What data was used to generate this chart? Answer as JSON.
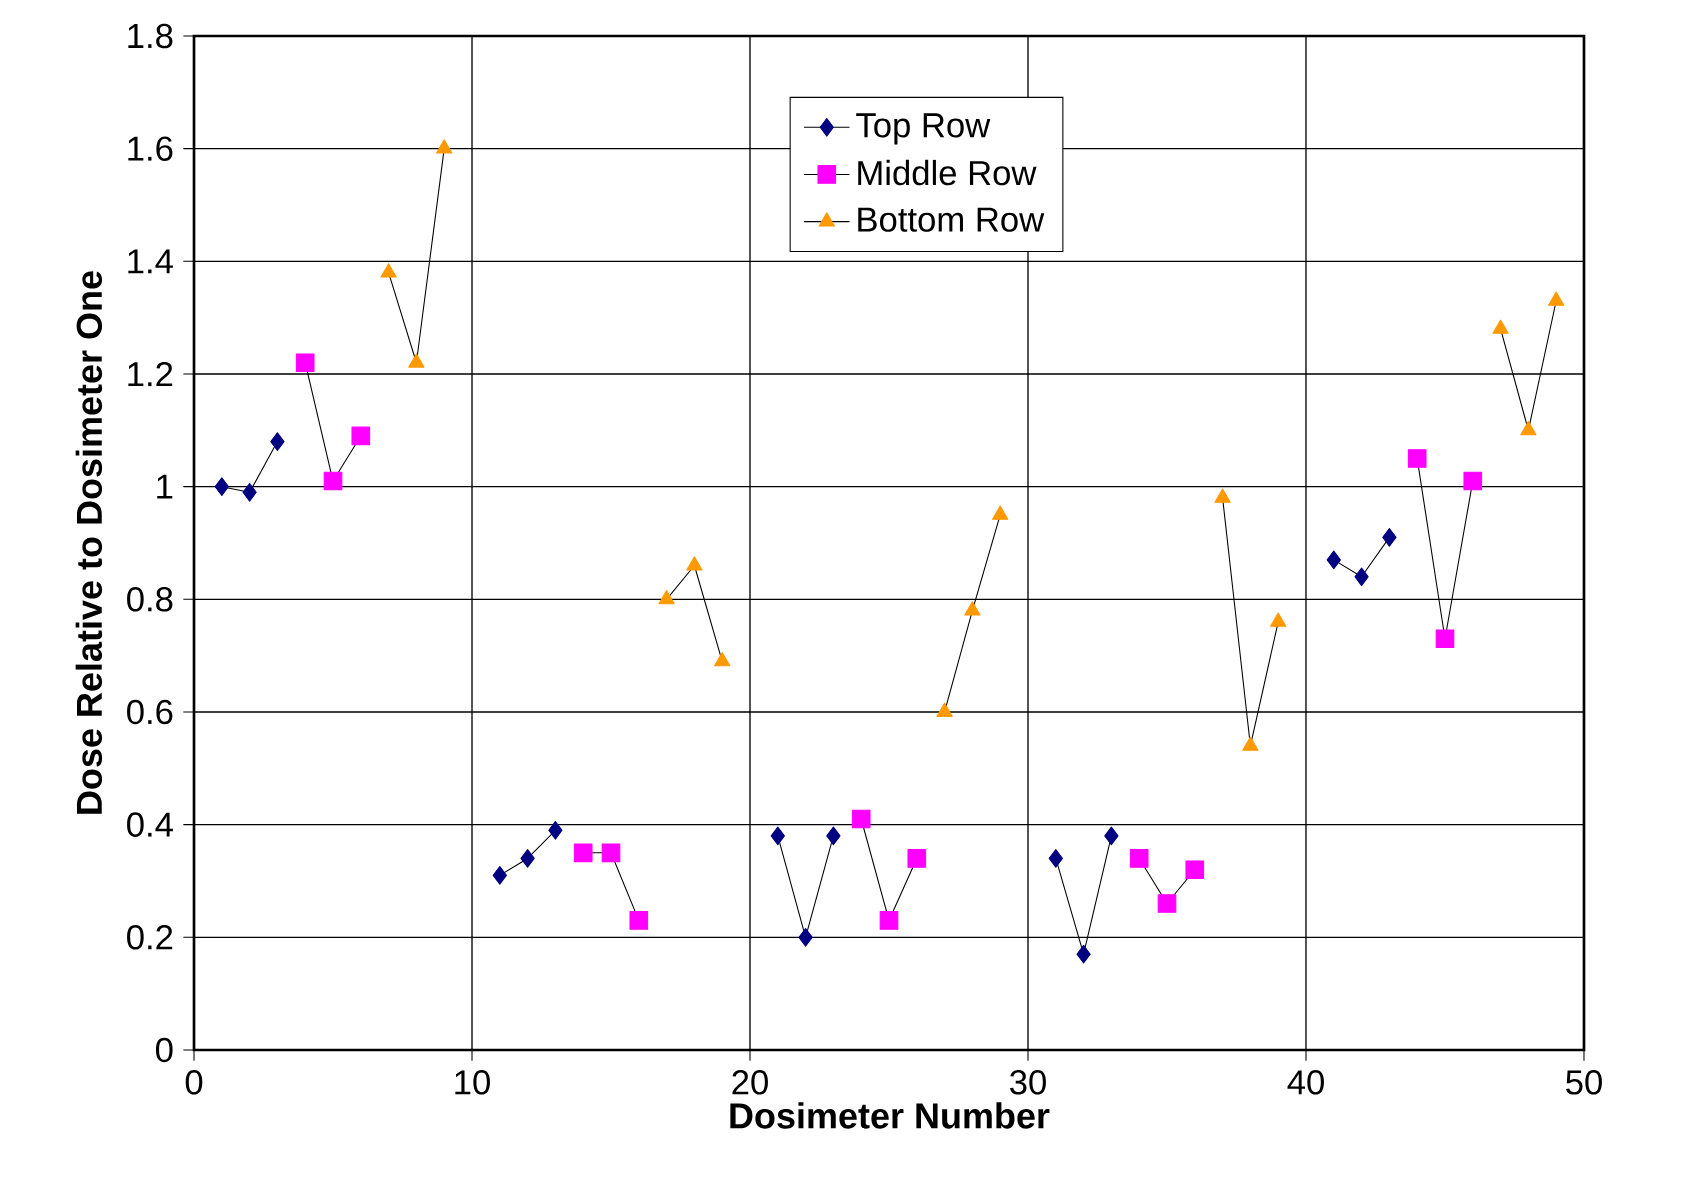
{
  "chart_data": {
    "type": "line",
    "xlabel": "Dosimeter Number",
    "ylabel": "Dose Relative to Dosimeter One",
    "xlim": [
      0,
      50
    ],
    "xticks": [
      0,
      10,
      20,
      30,
      40,
      50
    ],
    "ylim": [
      0,
      1.8
    ],
    "yticks": [
      0,
      0.2,
      0.4,
      0.6,
      0.8,
      1,
      1.2,
      1.4,
      1.6,
      1.8
    ],
    "grid": true,
    "legend": "top",
    "line_style": "solid",
    "series": [
      {
        "name": "Top Row",
        "color": "#000080",
        "marker": "diamond",
        "x": [
          1,
          2,
          3,
          7,
          11,
          12,
          13,
          17,
          21,
          22,
          23,
          27,
          31,
          32,
          33,
          37,
          41,
          42,
          43
        ],
        "values": [
          1.0,
          0.99,
          1.08,
          null,
          0.31,
          0.34,
          0.39,
          null,
          0.38,
          0.2,
          0.38,
          null,
          0.34,
          0.17,
          0.38,
          null,
          0.87,
          0.84,
          0.91
        ]
      },
      {
        "name": "Middle Row",
        "color": "#ff00ff",
        "marker": "square",
        "x": [
          4,
          5,
          6,
          10,
          14,
          15,
          16,
          20,
          24,
          25,
          26,
          30,
          34,
          35,
          36,
          40,
          44,
          45,
          46
        ],
        "values": [
          1.22,
          1.01,
          1.09,
          null,
          0.35,
          0.35,
          0.23,
          null,
          0.41,
          0.23,
          0.34,
          null,
          0.34,
          0.26,
          0.32,
          null,
          1.05,
          0.73,
          1.01
        ]
      },
      {
        "name": "Bottom Row",
        "color": "#ff9900",
        "marker": "triangle",
        "x": [
          7,
          8,
          9,
          13,
          17,
          18,
          19,
          23,
          27,
          28,
          29,
          33,
          37,
          38,
          39,
          43,
          47,
          48,
          49
        ],
        "values": [
          1.38,
          1.22,
          1.6,
          null,
          0.8,
          0.86,
          0.69,
          null,
          0.6,
          0.78,
          0.95,
          null,
          0.98,
          0.54,
          0.76,
          null,
          1.28,
          1.1,
          1.33
        ]
      }
    ]
  }
}
